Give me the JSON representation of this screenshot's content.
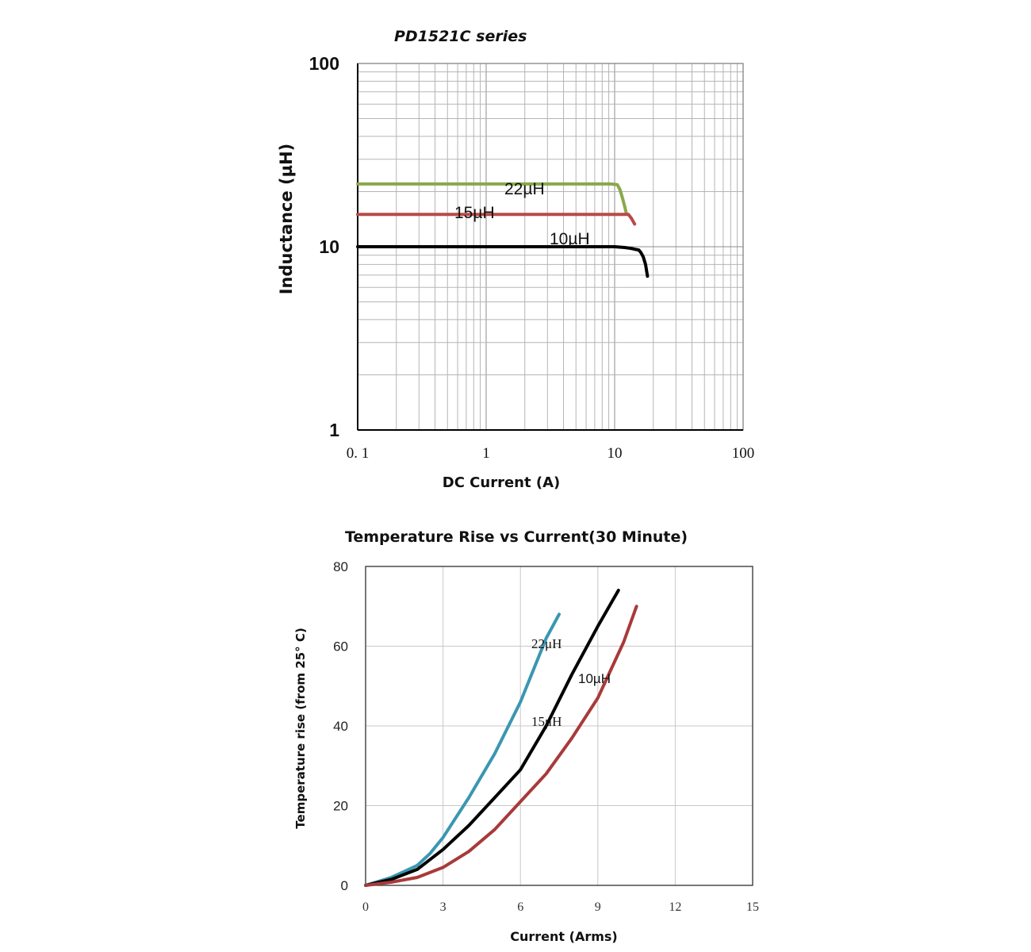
{
  "chart_data": [
    {
      "type": "line",
      "title": "PD1521C series",
      "xlabel": "DC Current (A)",
      "ylabel": "Inductance (µH)",
      "xscale": "log",
      "yscale": "log",
      "xlim": [
        0.1,
        100
      ],
      "ylim": [
        1,
        100
      ],
      "x_ticks": [
        "0. 1",
        "1",
        "10",
        "100"
      ],
      "y_ticks": [
        "1",
        "10",
        "100"
      ],
      "grid": true,
      "series": [
        {
          "name": "22µH",
          "color": "#8aa84a",
          "x": [
            0.1,
            1,
            3,
            9.3,
            10.5,
            11,
            11.5,
            12,
            12.3
          ],
          "y": [
            22,
            22,
            22,
            22,
            21.8,
            20.5,
            18.5,
            16.5,
            15.3
          ]
        },
        {
          "name": "15µH",
          "color": "#b84a48",
          "x": [
            0.1,
            1,
            5,
            10,
            12,
            12.8,
            13.5,
            14.3
          ],
          "y": [
            15,
            15,
            15,
            15,
            15,
            15,
            14.3,
            13.3
          ]
        },
        {
          "name": "10µH",
          "color": "#000000",
          "x": [
            0.1,
            1,
            5,
            10,
            12,
            13.3,
            14.3,
            15.4,
            16,
            16.7,
            17.4,
            18
          ],
          "y": [
            10,
            10,
            10,
            10,
            9.9,
            9.8,
            9.7,
            9.6,
            9.3,
            8.8,
            8,
            6.9
          ]
        }
      ]
    },
    {
      "type": "line",
      "title": "Temperature Rise vs Current(30 Minute)",
      "xlabel": "Current (Arms)",
      "ylabel": "Temperature rise (from 25° C)",
      "xlim": [
        0,
        15
      ],
      "ylim": [
        0,
        80
      ],
      "x_ticks": [
        "0",
        "3",
        "6",
        "9",
        "12",
        "15"
      ],
      "y_ticks": [
        "0",
        "20",
        "40",
        "60",
        "80"
      ],
      "grid": true,
      "series": [
        {
          "name": "22μH",
          "color": "#3a97b1",
          "x": [
            0,
            1,
            2,
            2.5,
            3,
            4,
            5,
            6,
            7,
            7.5
          ],
          "y": [
            0,
            2,
            5,
            8,
            12,
            22,
            33,
            46,
            62,
            68
          ]
        },
        {
          "name": "10µH",
          "color": "#000000",
          "x": [
            0,
            1,
            2,
            3,
            4,
            5,
            6,
            7,
            8,
            9,
            9.8
          ],
          "y": [
            0,
            1.5,
            4,
            9,
            15,
            22,
            29,
            40,
            53,
            65,
            74
          ]
        },
        {
          "name": "15μH",
          "color": "#a83a3a",
          "x": [
            0,
            1,
            2,
            3,
            4,
            5,
            6,
            7,
            8,
            9,
            10,
            10.5
          ],
          "y": [
            0,
            0.8,
            2,
            4.5,
            8.5,
            14,
            21,
            28,
            37,
            47,
            61,
            70
          ]
        }
      ],
      "annotations": [
        "22μH",
        "10µH",
        "15μH"
      ]
    }
  ]
}
